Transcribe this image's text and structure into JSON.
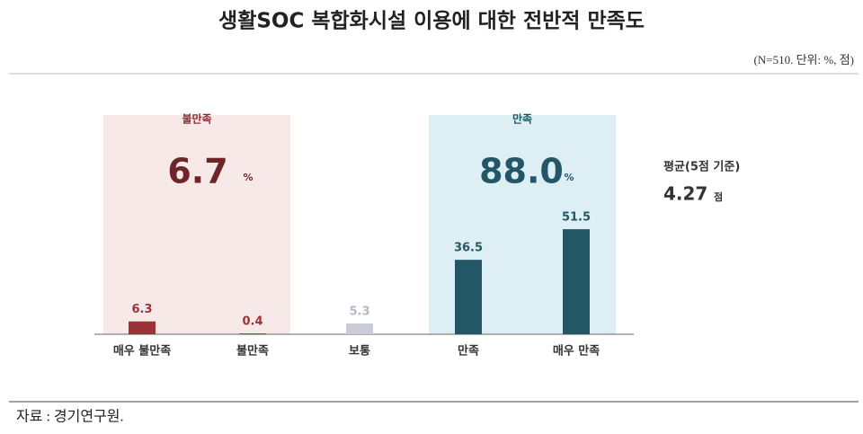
{
  "chart_data": {
    "type": "bar",
    "title": "생활SOC 복합화시설 이용에 대한 전반적 만족도",
    "subtitle": "(N=510. 단위: %, 점)",
    "categories": [
      "매우 불만족",
      "불만족",
      "보통",
      "만족",
      "매우 만족"
    ],
    "values": [
      6.3,
      0.4,
      5.3,
      36.5,
      51.5
    ],
    "colors": [
      "#9b3237",
      "#9b3237",
      "#c9cbd6",
      "#235765",
      "#235765"
    ],
    "groups": [
      {
        "name": "불만족",
        "value": 6.7,
        "unit": "%",
        "color": "#6e2528",
        "background": "#f8e9e9"
      },
      {
        "name": "만족",
        "value": 88,
        "value_label": "88.0",
        "unit": "%",
        "color": "#235765",
        "background": "#deeef5"
      }
    ],
    "average": {
      "name": "평균(5점 기준)",
      "value": 4.27,
      "unit": "점"
    },
    "source": "자료 : 경기연구원."
  }
}
